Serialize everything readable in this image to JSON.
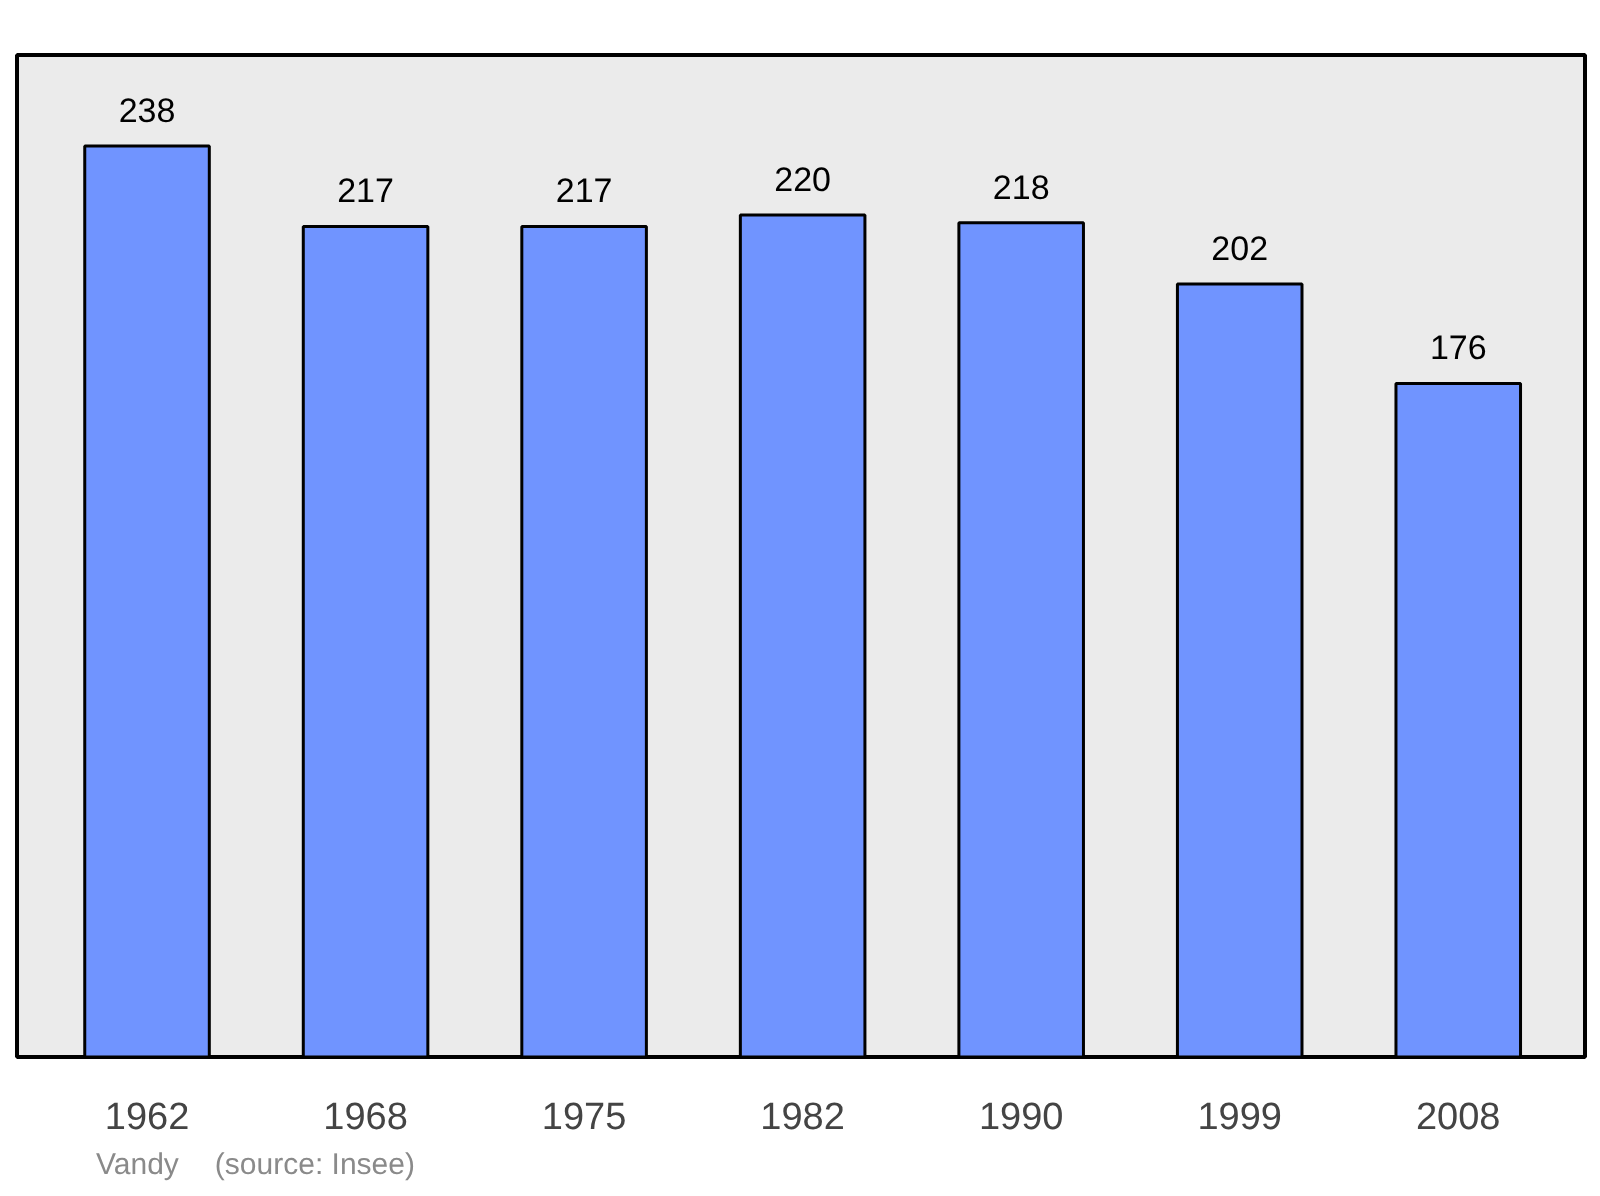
{
  "chart_data": {
    "type": "bar",
    "categories": [
      "1962",
      "1968",
      "1975",
      "1982",
      "1990",
      "1999",
      "2008"
    ],
    "values": [
      238,
      217,
      217,
      220,
      218,
      202,
      176
    ],
    "color": "#7094ff",
    "data_labels": true,
    "grid": false,
    "annotations": [
      "Vandy",
      "(source: Insee)"
    ]
  }
}
